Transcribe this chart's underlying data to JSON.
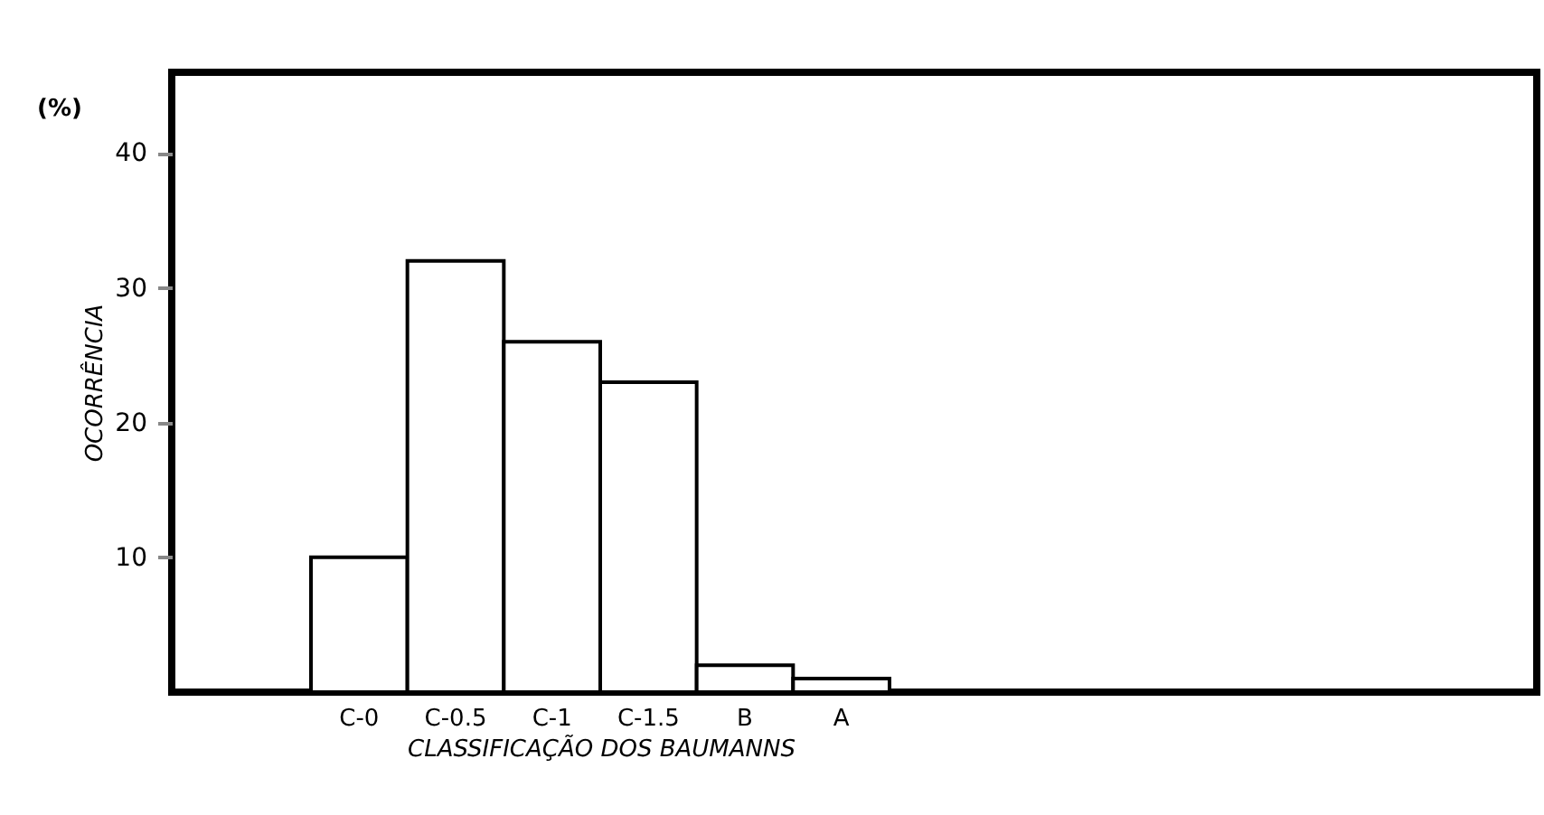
{
  "chart_data": {
    "type": "bar",
    "xlabel": "CLASSIFICAÇÃO DOS BAUMANNS",
    "ylabel": "OCORRÊNCIA",
    "annotations": [
      "(%)"
    ],
    "categories": [
      "C-0",
      "C-0.5",
      "C-1",
      "C-1.5",
      "B",
      "A"
    ],
    "values": [
      10,
      32,
      26,
      23,
      2,
      1
    ],
    "color": "#ffffff",
    "ylim": [
      0,
      46
    ],
    "yticks": [
      10,
      20,
      30,
      40
    ],
    "grid": false
  }
}
